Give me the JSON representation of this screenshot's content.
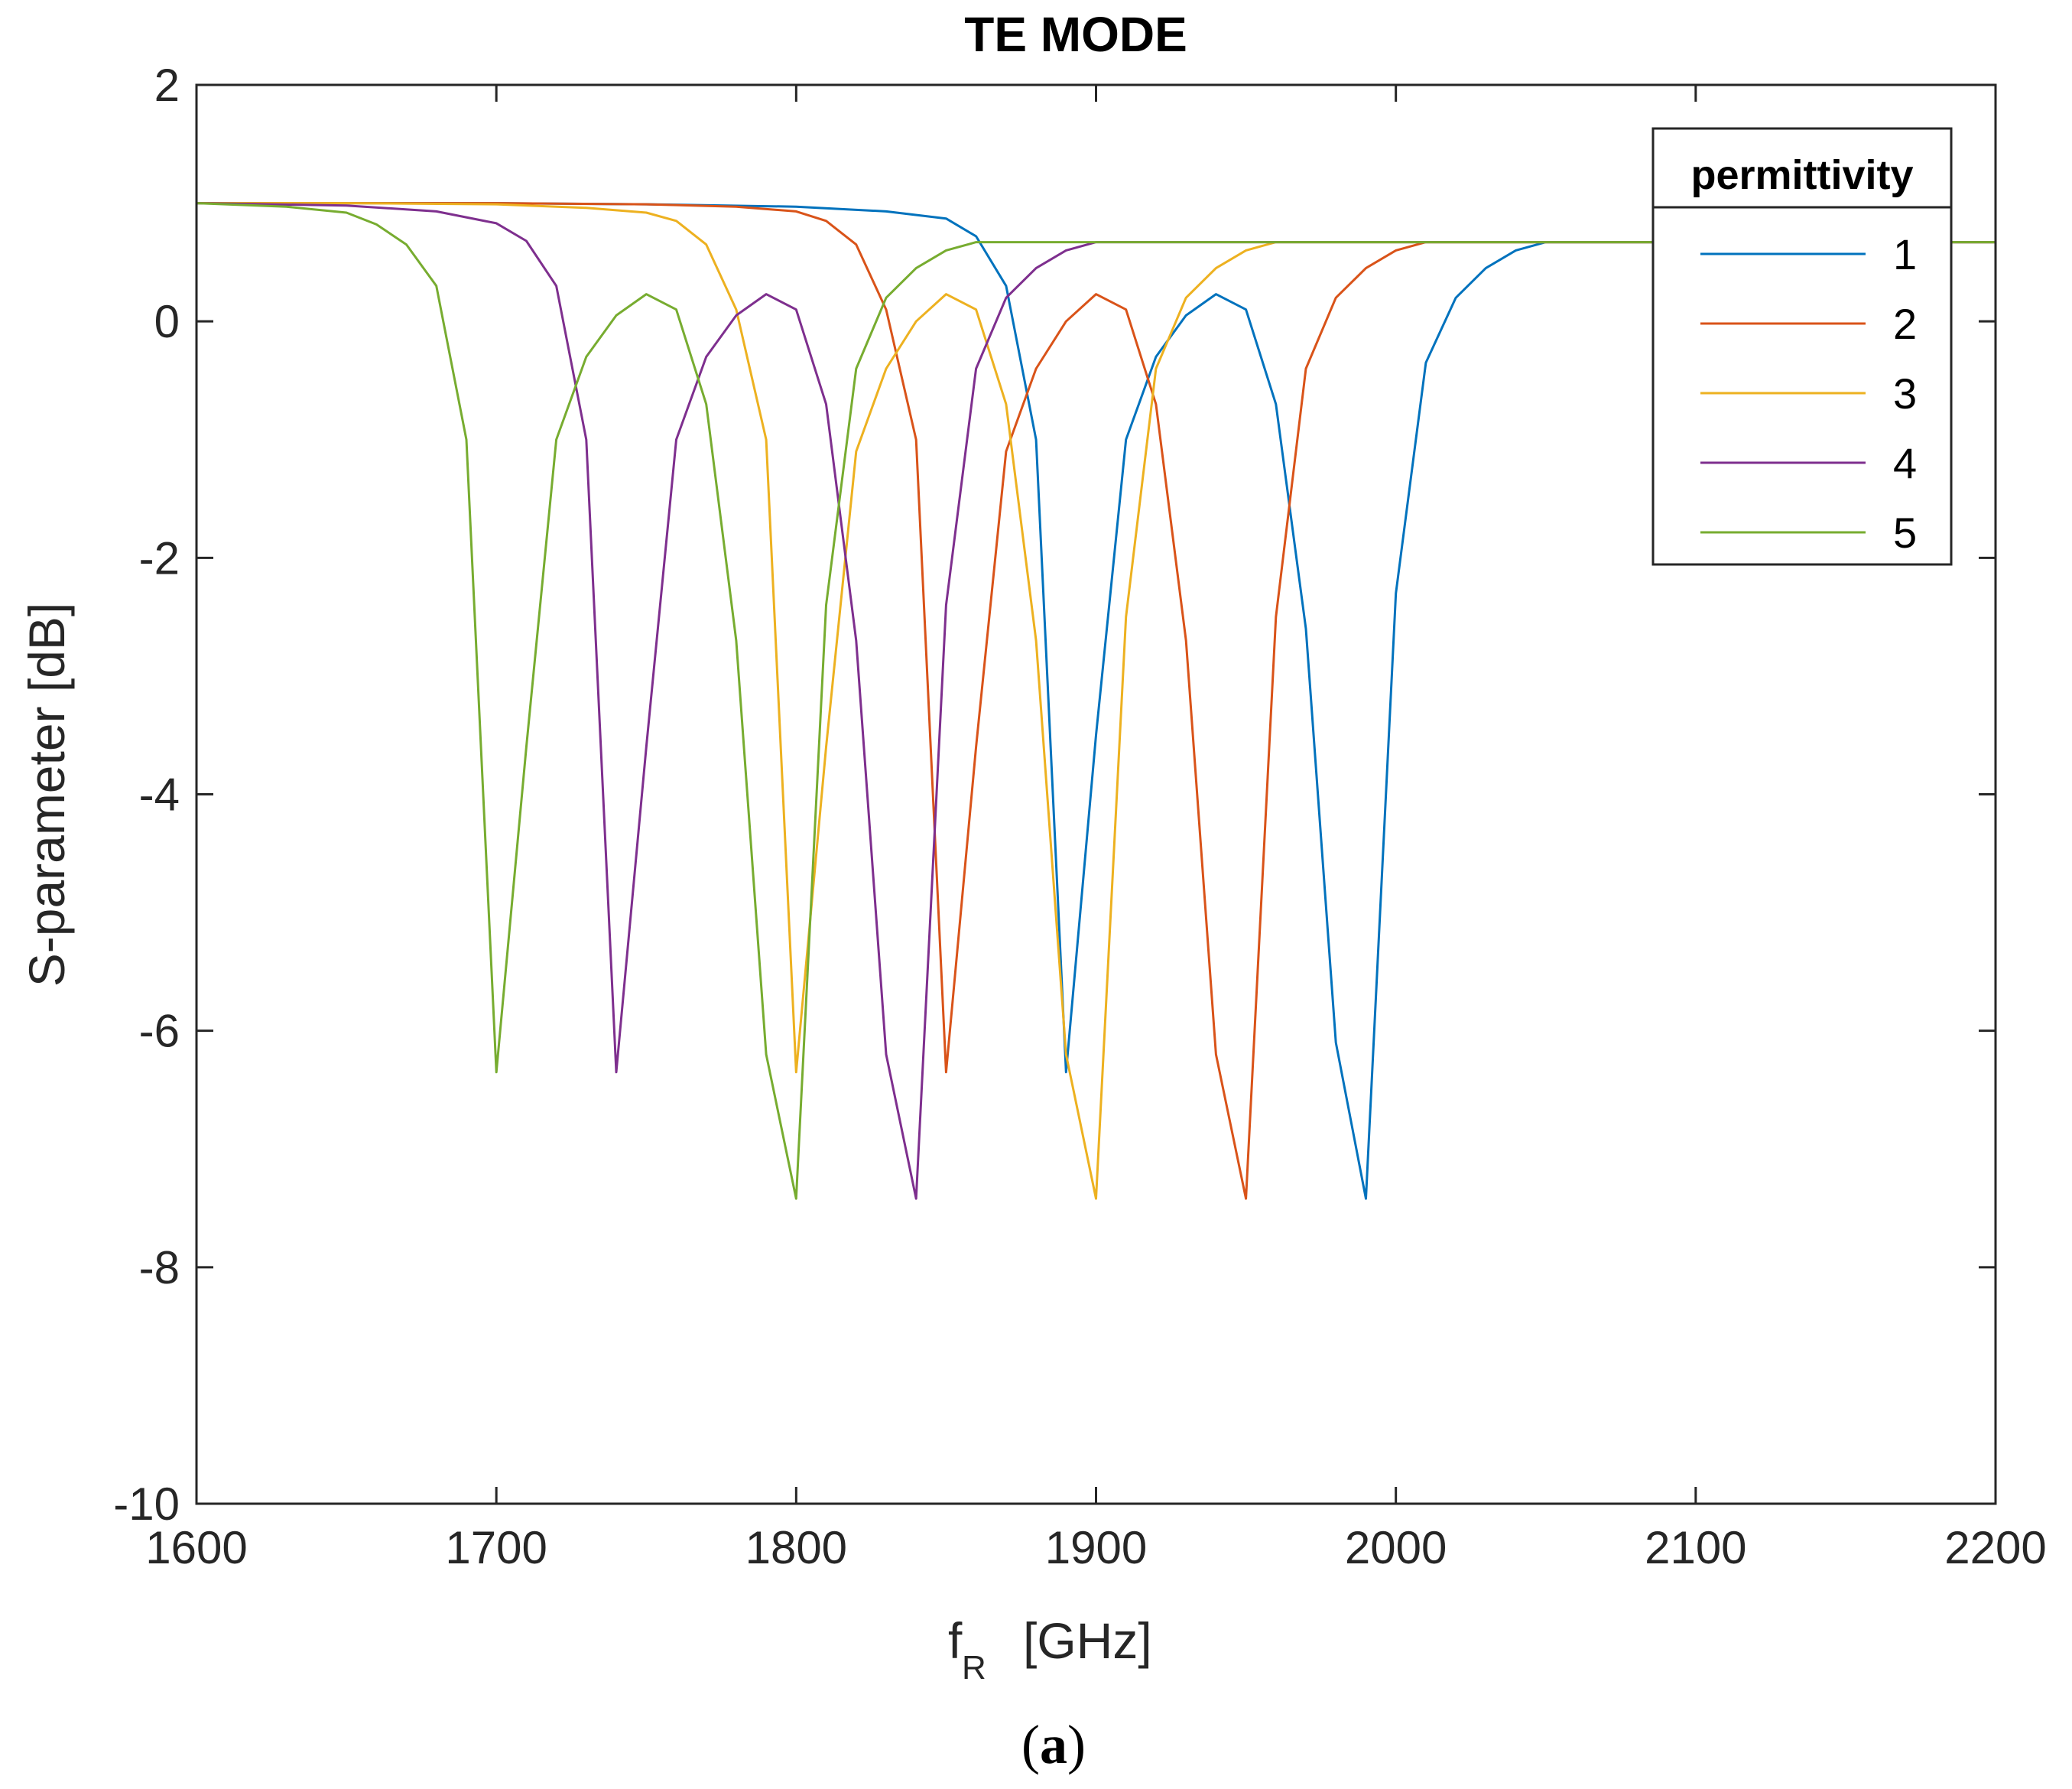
{
  "chart_data": {
    "type": "line",
    "title": "TE MODE",
    "xlabel": "f",
    "xlabel_subscript": "R",
    "xlabel_unit": "[GHz]",
    "ylabel": "S-parameter [dB]",
    "xlim": [
      1600,
      2200
    ],
    "ylim": [
      -10,
      2
    ],
    "xticks": [
      1600,
      1700,
      1800,
      1900,
      2000,
      2100,
      2200
    ],
    "yticks": [
      2,
      0,
      -2,
      -4,
      -6,
      -8,
      -10
    ],
    "legend_title": "permittivity",
    "legend_position": "top-right",
    "caption": {
      "open": "(",
      "letter": "a",
      "close": ")"
    },
    "series": [
      {
        "name": "1",
        "color": "#0072BD",
        "x": [
          1600,
          1650,
          1700,
          1750,
          1800,
          1830,
          1850,
          1860,
          1870,
          1880,
          1890,
          1900,
          1910,
          1920,
          1930,
          1940,
          1950,
          1960,
          1970,
          1980,
          1990,
          2000,
          2010,
          2020,
          2030,
          2040,
          2050,
          2100,
          2200
        ],
        "y": [
          1.0,
          1.0,
          1.0,
          0.99,
          0.97,
          0.93,
          0.87,
          0.72,
          0.3,
          -1.0,
          -6.35,
          -3.5,
          -1.0,
          -0.3,
          0.05,
          0.23,
          0.1,
          -0.7,
          -2.6,
          -6.1,
          -7.42,
          -2.3,
          -0.35,
          0.2,
          0.45,
          0.6,
          0.67,
          0.67,
          0.67
        ]
      },
      {
        "name": "2",
        "color": "#D95319",
        "x": [
          1600,
          1650,
          1700,
          1750,
          1780,
          1800,
          1810,
          1820,
          1830,
          1840,
          1850,
          1860,
          1870,
          1880,
          1890,
          1900,
          1910,
          1920,
          1930,
          1940,
          1950,
          1960,
          1970,
          1980,
          1990,
          2000,
          2010,
          2100,
          2200
        ],
        "y": [
          1.0,
          1.0,
          1.0,
          0.99,
          0.97,
          0.93,
          0.85,
          0.65,
          0.1,
          -1.0,
          -6.35,
          -3.6,
          -1.1,
          -0.4,
          0.0,
          0.23,
          0.1,
          -0.7,
          -2.7,
          -6.2,
          -7.42,
          -2.5,
          -0.4,
          0.2,
          0.45,
          0.6,
          0.67,
          0.67,
          0.67
        ]
      },
      {
        "name": "3",
        "color": "#EDB120",
        "x": [
          1600,
          1650,
          1700,
          1730,
          1750,
          1760,
          1770,
          1780,
          1790,
          1800,
          1810,
          1820,
          1830,
          1840,
          1850,
          1860,
          1870,
          1880,
          1890,
          1900,
          1910,
          1920,
          1930,
          1940,
          1950,
          1960,
          2100,
          2200
        ],
        "y": [
          1.0,
          1.0,
          0.99,
          0.96,
          0.92,
          0.85,
          0.65,
          0.1,
          -1.0,
          -6.35,
          -3.6,
          -1.1,
          -0.4,
          0.0,
          0.23,
          0.1,
          -0.7,
          -2.7,
          -6.2,
          -7.42,
          -2.5,
          -0.4,
          0.2,
          0.45,
          0.6,
          0.67,
          0.67,
          0.67
        ]
      },
      {
        "name": "4",
        "color": "#7E2F8E",
        "x": [
          1600,
          1650,
          1680,
          1700,
          1710,
          1720,
          1730,
          1740,
          1750,
          1760,
          1770,
          1780,
          1790,
          1800,
          1810,
          1820,
          1830,
          1840,
          1850,
          1860,
          1870,
          1880,
          1890,
          1900,
          2100,
          2200
        ],
        "y": [
          1.0,
          0.98,
          0.93,
          0.83,
          0.68,
          0.3,
          -1.0,
          -6.35,
          -3.6,
          -1.0,
          -0.3,
          0.05,
          0.23,
          0.1,
          -0.7,
          -2.7,
          -6.2,
          -7.42,
          -2.4,
          -0.4,
          0.2,
          0.45,
          0.6,
          0.67,
          0.67,
          0.67
        ]
      },
      {
        "name": "5",
        "color": "#77AC30",
        "x": [
          1600,
          1630,
          1650,
          1660,
          1670,
          1680,
          1690,
          1700,
          1710,
          1720,
          1730,
          1740,
          1750,
          1760,
          1770,
          1780,
          1790,
          1800,
          1810,
          1820,
          1830,
          1840,
          1850,
          1860,
          2100,
          2200
        ],
        "y": [
          1.0,
          0.97,
          0.92,
          0.82,
          0.65,
          0.3,
          -1.0,
          -6.35,
          -3.6,
          -1.0,
          -0.3,
          0.05,
          0.23,
          0.1,
          -0.7,
          -2.7,
          -6.2,
          -7.42,
          -2.4,
          -0.4,
          0.2,
          0.45,
          0.6,
          0.67,
          0.67,
          0.67
        ]
      }
    ]
  }
}
